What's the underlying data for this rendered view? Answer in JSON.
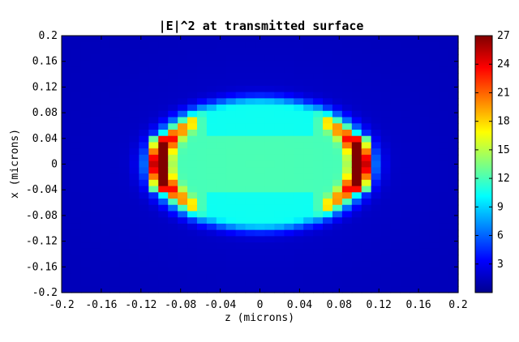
{
  "figure": {
    "title": "|E|^2 at transmitted surface"
  },
  "chart_data": {
    "type": "heatmap",
    "title": "|E|^2 at transmitted surface",
    "xlabel": "z (microns)",
    "ylabel": "x (microns)",
    "xlim": [
      -0.2,
      0.2
    ],
    "ylim": [
      -0.2,
      0.2
    ],
    "x_ticks": [
      -0.2,
      -0.16,
      -0.12,
      -0.08,
      -0.04,
      0,
      0.04,
      0.08,
      0.12,
      0.16,
      0.2
    ],
    "x_tick_labels": [
      "-0.2",
      "-0.16",
      "-0.12",
      "-0.08",
      "-0.04",
      "0",
      "0.04",
      "0.08",
      "0.12",
      "0.16",
      "0.2"
    ],
    "y_ticks": [
      0.2,
      0.16,
      0.12,
      0.08,
      0.04,
      0,
      -0.04,
      -0.08,
      -0.12,
      -0.16,
      -0.2
    ],
    "y_tick_labels": [
      "0.2",
      "0.16",
      "0.12",
      "0.08",
      "0.04",
      "0",
      "-0.04",
      "-0.08",
      "-0.12",
      "-0.16",
      "-0.2"
    ],
    "grid_points": 41,
    "colormap": "jet",
    "clim": [
      0,
      27
    ],
    "colorbar_ticks": [
      3,
      6,
      9,
      12,
      15,
      18,
      21,
      24,
      27
    ],
    "colorbar_tick_labels": [
      "3",
      "6",
      "9",
      "12",
      "15",
      "18",
      "21",
      "24",
      "27"
    ],
    "field_features": {
      "background_value": 1.5,
      "central_lobe_value": 10,
      "central_lobe_half_width_z": 0.1,
      "central_lobe_half_height_x": 0.09,
      "edge_peak_value": 27,
      "edge_peak_z": [
        -0.1,
        0.1
      ],
      "edge_peak_x": [
        0.03,
        0,
        -0.03
      ]
    }
  }
}
